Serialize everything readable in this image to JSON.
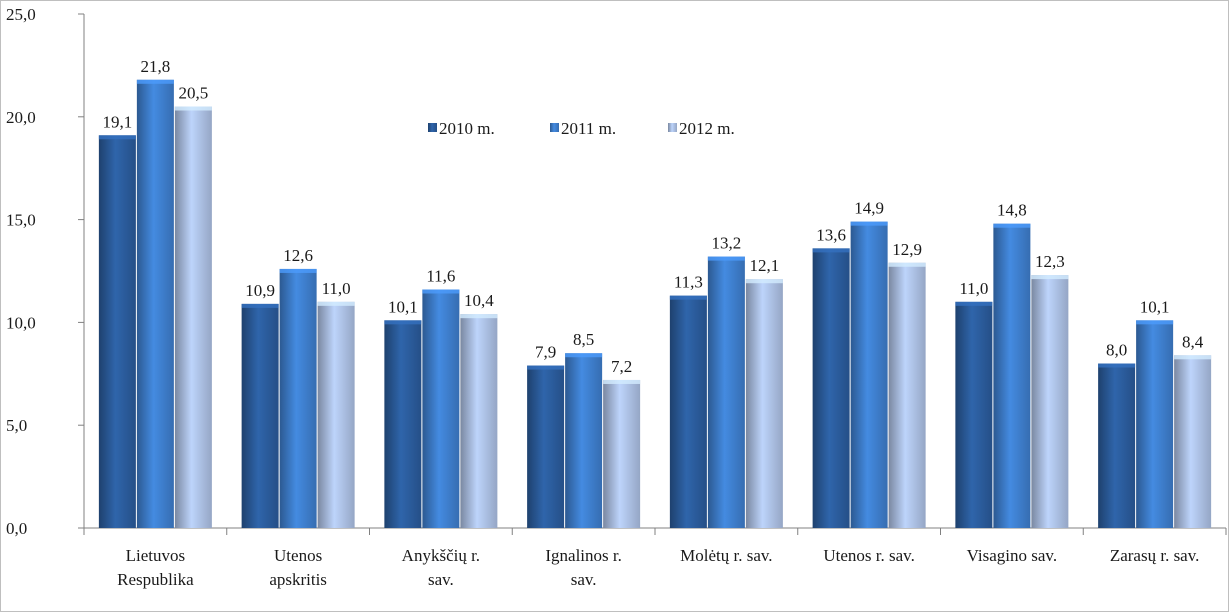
{
  "chart_data": {
    "type": "bar",
    "title": "",
    "xlabel": "",
    "ylabel": "",
    "ylim": [
      0,
      25
    ],
    "yticks": [
      "0,0",
      "5,0",
      "10,0",
      "15,0",
      "20,0",
      "25,0"
    ],
    "grid": false,
    "legend_position": "top-center",
    "categories": [
      [
        "Lietuvos",
        "Respublika"
      ],
      [
        "Utenos",
        "apskritis"
      ],
      [
        "Anykščių r.",
        "sav."
      ],
      [
        "Ignalinos r.",
        "sav."
      ],
      [
        "Molėtų r. sav."
      ],
      [
        "Utenos r. sav."
      ],
      [
        "Visagino sav."
      ],
      [
        "Zarasų r. sav."
      ]
    ],
    "series": [
      {
        "name": "2010 m.",
        "color": "#2a5a99",
        "values": [
          19.1,
          10.9,
          10.1,
          7.9,
          11.3,
          13.6,
          11.0,
          8.0
        ],
        "labels": [
          "19,1",
          "10,9",
          "10,1",
          "7,9",
          "11,3",
          "13,6",
          "11,0",
          "8,0"
        ]
      },
      {
        "name": "2011 m.",
        "color": "#3d7cc9",
        "values": [
          21.8,
          12.6,
          11.6,
          8.5,
          13.2,
          14.9,
          14.8,
          10.1
        ],
        "labels": [
          "21,8",
          "12,6",
          "11,6",
          "8,5",
          "13,2",
          "14,9",
          "14,8",
          "10,1"
        ]
      },
      {
        "name": "2012 m.",
        "color": "#a9bde0",
        "values": [
          20.5,
          11.0,
          10.4,
          7.2,
          12.1,
          12.9,
          12.3,
          8.4
        ],
        "labels": [
          "20,5",
          "11,0",
          "10,4",
          "7,2",
          "12,1",
          "12,9",
          "12,3",
          "8,4"
        ]
      }
    ]
  }
}
